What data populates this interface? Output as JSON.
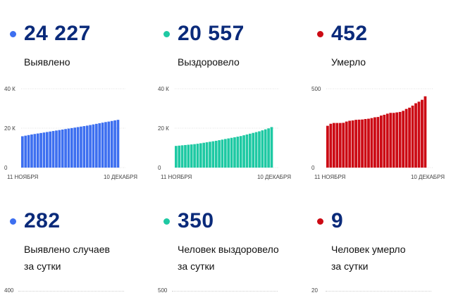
{
  "top": [
    {
      "value": "24 227",
      "label": "Выявлено",
      "color": "#3d6ff0"
    },
    {
      "value": "20 557",
      "label": "Выздоровело",
      "color": "#1ec9a3"
    },
    {
      "value": "452",
      "label": "Умерло",
      "color": "#cc0a14"
    }
  ],
  "bottom": [
    {
      "value": "282",
      "label_1": "Выявлено случаев",
      "label_2": "за сутки",
      "color": "#3d6ff0",
      "y_top_tick": "400"
    },
    {
      "value": "350",
      "label_1": "Человек выздоровело",
      "label_2": "за сутки",
      "color": "#1ec9a3",
      "y_top_tick": "500"
    },
    {
      "value": "9",
      "label_1": "Человек умерло",
      "label_2": "за сутки",
      "color": "#cc0a14",
      "y_top_tick": "20"
    }
  ],
  "chart_data": [
    {
      "type": "bar",
      "title": "",
      "color": "#3d6ff0",
      "ylim": [
        0,
        40000
      ],
      "yticks": [
        "40 К",
        "20 К",
        "0"
      ],
      "xlabels": [
        "11 НОЯБРЯ",
        "10 ДЕКАБРЯ"
      ],
      "values": [
        15900,
        16200,
        16500,
        16800,
        17050,
        17300,
        17550,
        17800,
        18050,
        18300,
        18550,
        18800,
        19050,
        19300,
        19550,
        19800,
        20050,
        20300,
        20550,
        20800,
        21050,
        21300,
        21600,
        21900,
        22200,
        22500,
        22800,
        23100,
        23350,
        23650,
        23950,
        24227
      ]
    },
    {
      "type": "bar",
      "title": "",
      "color": "#1ec9a3",
      "ylim": [
        0,
        40000
      ],
      "yticks": [
        "40 К",
        "20 К",
        "0"
      ],
      "xlabels": [
        "11 НОЯБРЯ",
        "10 ДЕКАБРЯ"
      ],
      "values": [
        11000,
        11150,
        11300,
        11450,
        11600,
        11750,
        11900,
        12100,
        12350,
        12600,
        12850,
        13100,
        13350,
        13600,
        13900,
        14200,
        14500,
        14800,
        15100,
        15400,
        15700,
        16000,
        16400,
        16800,
        17200,
        17600,
        18000,
        18400,
        18900,
        19400,
        19900,
        20557
      ]
    },
    {
      "type": "bar",
      "title": "",
      "color": "#cc0a14",
      "ylim": [
        0,
        500
      ],
      "yticks": [
        "500",
        "0"
      ],
      "xlabels": [
        "11 НОЯБРЯ",
        "10 ДЕКАБРЯ"
      ],
      "values": [
        265,
        278,
        283,
        283,
        283,
        284,
        292,
        297,
        299,
        303,
        304,
        305,
        308,
        310,
        314,
        319,
        321,
        330,
        335,
        342,
        347,
        347,
        350,
        353,
        360,
        372,
        380,
        393,
        408,
        418,
        430,
        452
      ]
    }
  ]
}
